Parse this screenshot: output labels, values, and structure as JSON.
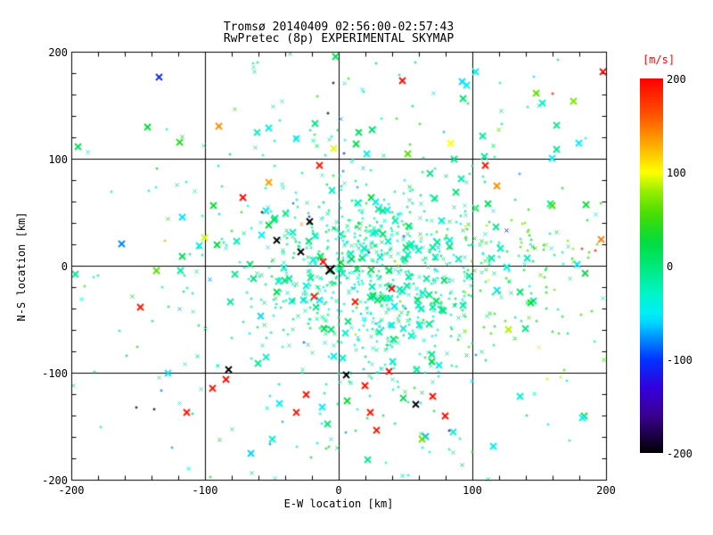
{
  "title": {
    "line1": "Tromsø 20140409 02:56:00-02:57:43",
    "line2": "RwPretec (8p) EXPERIMENTAL SKYMAP"
  },
  "axes": {
    "xlabel": "E-W location [km]",
    "ylabel": "N-S location [km]",
    "xlim": [
      -200,
      200
    ],
    "ylim": [
      -200,
      200
    ],
    "major_step": 100,
    "minor_step": 20,
    "grid": "on at -100, 0, 100",
    "x_ticks": [
      "-200",
      "-100",
      "0",
      "100",
      "200"
    ],
    "y_ticks": [
      "200",
      "100",
      "0",
      "-100",
      "-200"
    ]
  },
  "colorbar": {
    "label": "[m/s]",
    "label_color": "#ff0000",
    "min": -200,
    "max": 200,
    "ticks": [
      "200",
      "100",
      "0",
      "-100",
      "-200"
    ],
    "tick_values": [
      200,
      100,
      0,
      -100,
      -200
    ]
  },
  "chart_data": {
    "type": "scatter",
    "title": "Tromsø 20140409 02:56:00-02:57:43 / RwPretec (8p) EXPERIMENTAL SKYMAP",
    "xlabel": "E-W location [km]",
    "ylabel": "N-S location [km]",
    "value_label": "[m/s]",
    "xlim": [
      -200,
      200
    ],
    "ylim": [
      -200,
      200
    ],
    "vlim": [
      -200,
      200
    ],
    "colormap_stops": [
      [
        -200,
        "#000000"
      ],
      [
        -160,
        "#3a0090"
      ],
      [
        -130,
        "#3300dd"
      ],
      [
        -100,
        "#0033ff"
      ],
      [
        -75,
        "#0099ff"
      ],
      [
        -55,
        "#00eeff"
      ],
      [
        -30,
        "#00f5c8"
      ],
      [
        0,
        "#00e878"
      ],
      [
        25,
        "#00dd40"
      ],
      [
        55,
        "#44dd00"
      ],
      [
        80,
        "#99ee00"
      ],
      [
        100,
        "#ffff00"
      ],
      [
        130,
        "#ffaa00"
      ],
      [
        160,
        "#ff5500"
      ],
      [
        200,
        "#ff0000"
      ]
    ],
    "marker_sizes_px": [
      3,
      5,
      7,
      10
    ],
    "seed": 7,
    "clusters": [
      {
        "n": 560,
        "cx": 35,
        "cy": 5,
        "sx": 48,
        "sy": 38,
        "vm": -18,
        "vs": 22,
        "w": [
          0.5,
          0.3,
          0.2
        ]
      },
      {
        "n": 150,
        "cx": 15,
        "cy": -55,
        "sx": 35,
        "sy": 30,
        "vm": -25,
        "vs": 20,
        "w": [
          0.5,
          0.35,
          0.15
        ]
      },
      {
        "n": 260,
        "cx": 10,
        "cy": -5,
        "sx": 95,
        "sy": 75,
        "vm": -10,
        "vs": 35,
        "w": [
          0.6,
          0.25,
          0.15
        ]
      },
      {
        "n": 95,
        "cx": 135,
        "cy": -5,
        "sx": 38,
        "sy": 45,
        "vm": 45,
        "vs": 28,
        "w": [
          0.7,
          0.25,
          0.05
        ]
      },
      {
        "n": 45,
        "cx": 20,
        "cy": 140,
        "sx": 90,
        "sy": 35,
        "vm": -5,
        "vs": 30,
        "w": [
          0.6,
          0.25,
          0.15
        ]
      },
      {
        "n": 45,
        "cx": 0,
        "cy": -150,
        "sx": 90,
        "sy": 30,
        "vm": -15,
        "vs": 35,
        "w": [
          0.55,
          0.3,
          0.15
        ]
      }
    ],
    "points_explicit": [
      [
        47,
        173,
        195,
        2
      ],
      [
        -15,
        94,
        190,
        2
      ],
      [
        -72,
        64,
        195,
        2
      ],
      [
        109,
        94,
        190,
        2
      ],
      [
        197,
        182,
        195,
        2
      ],
      [
        -95,
        -114,
        190,
        2
      ],
      [
        -85,
        -106,
        195,
        2
      ],
      [
        -114,
        -137,
        190,
        2
      ],
      [
        -25,
        -120,
        195,
        2
      ],
      [
        -32,
        -137,
        190,
        2
      ],
      [
        19,
        -112,
        195,
        2
      ],
      [
        23,
        -137,
        190,
        2
      ],
      [
        70,
        -122,
        195,
        2
      ],
      [
        28,
        -153,
        190,
        2
      ],
      [
        79,
        -140,
        195,
        2
      ],
      [
        -149,
        -38,
        190,
        2
      ],
      [
        -12,
        4,
        195,
        2
      ],
      [
        12,
        -33,
        190,
        2
      ],
      [
        39,
        -21,
        195,
        2
      ],
      [
        -19,
        -28,
        185,
        2
      ],
      [
        37,
        -98,
        190,
        2
      ],
      [
        159,
        162,
        195,
        0
      ],
      [
        -8,
        -4,
        185,
        1
      ],
      [
        181,
        17,
        190,
        0
      ],
      [
        191,
        15,
        195,
        0
      ],
      [
        -90,
        131,
        140,
        2
      ],
      [
        118,
        75,
        140,
        2
      ],
      [
        -53,
        78,
        135,
        2
      ],
      [
        -28,
        39,
        140,
        1
      ],
      [
        196,
        25,
        145,
        2
      ],
      [
        -131,
        24,
        130,
        0
      ],
      [
        83,
        115,
        100,
        2
      ],
      [
        -4,
        110,
        95,
        2
      ],
      [
        -101,
        27,
        92,
        2
      ],
      [
        43,
        2,
        105,
        0
      ],
      [
        155,
        -105,
        88,
        0
      ],
      [
        165,
        -103,
        85,
        0
      ],
      [
        -7,
        -3,
        -200,
        3
      ],
      [
        -83,
        -97,
        -200,
        2
      ],
      [
        57,
        -129,
        -200,
        2
      ],
      [
        -22,
        42,
        -200,
        2
      ],
      [
        -47,
        24,
        -200,
        2
      ],
      [
        -29,
        13,
        -200,
        2
      ],
      [
        5,
        -102,
        -200,
        2
      ],
      [
        -152,
        -132,
        -200,
        0
      ],
      [
        -139,
        -133,
        -200,
        0
      ],
      [
        -5,
        172,
        -200,
        0
      ],
      [
        -9,
        143,
        -200,
        0
      ],
      [
        -58,
        51,
        -200,
        0
      ],
      [
        -135,
        177,
        -105,
        2
      ],
      [
        -163,
        21,
        -80,
        2
      ],
      [
        3,
        106,
        -110,
        0
      ],
      [
        -23,
        47,
        -115,
        0
      ],
      [
        22,
        13,
        -120,
        0
      ],
      [
        48,
        28,
        -100,
        0
      ],
      [
        82,
        -153,
        -160,
        0
      ],
      [
        125,
        33,
        -115,
        1
      ],
      [
        -128,
        -100,
        -55,
        2
      ],
      [
        -45,
        -128,
        -50,
        2
      ],
      [
        -13,
        -132,
        -55,
        2
      ],
      [
        115,
        -168,
        -50,
        2
      ],
      [
        182,
        -142,
        -55,
        2
      ],
      [
        -105,
        19,
        -50,
        2
      ],
      [
        102,
        182,
        -45,
        2
      ],
      [
        95,
        169,
        -50,
        2
      ],
      [
        -32,
        119,
        -55,
        2
      ],
      [
        -53,
        129,
        -45,
        2
      ],
      [
        159,
        101,
        -50,
        2
      ],
      [
        179,
        115,
        -55,
        2
      ],
      [
        -193,
        -31,
        -55,
        1
      ],
      [
        -48,
        -198,
        -45,
        1
      ],
      [
        178,
        2,
        -50,
        2
      ],
      [
        147,
        162,
        65,
        2
      ],
      [
        175,
        154,
        70,
        2
      ],
      [
        51,
        105,
        60,
        2
      ],
      [
        62,
        -162,
        65,
        2
      ],
      [
        -137,
        -4,
        60,
        2
      ],
      [
        159,
        57,
        55,
        2
      ],
      [
        -179,
        -150,
        -20,
        0
      ],
      [
        -97,
        -197,
        20,
        0
      ],
      [
        -171,
        70,
        -25,
        0
      ],
      [
        -143,
        71,
        -30,
        0
      ],
      [
        -137,
        92,
        25,
        0
      ],
      [
        -115,
        79,
        -20,
        0
      ],
      [
        163,
        193,
        -10,
        0
      ],
      [
        120,
        172,
        -25,
        0
      ],
      [
        27,
        190,
        15,
        0
      ],
      [
        -65,
        190,
        -20,
        0
      ],
      [
        -165,
        -60,
        -25,
        0
      ],
      [
        -184,
        -10,
        -30,
        0
      ]
    ]
  }
}
